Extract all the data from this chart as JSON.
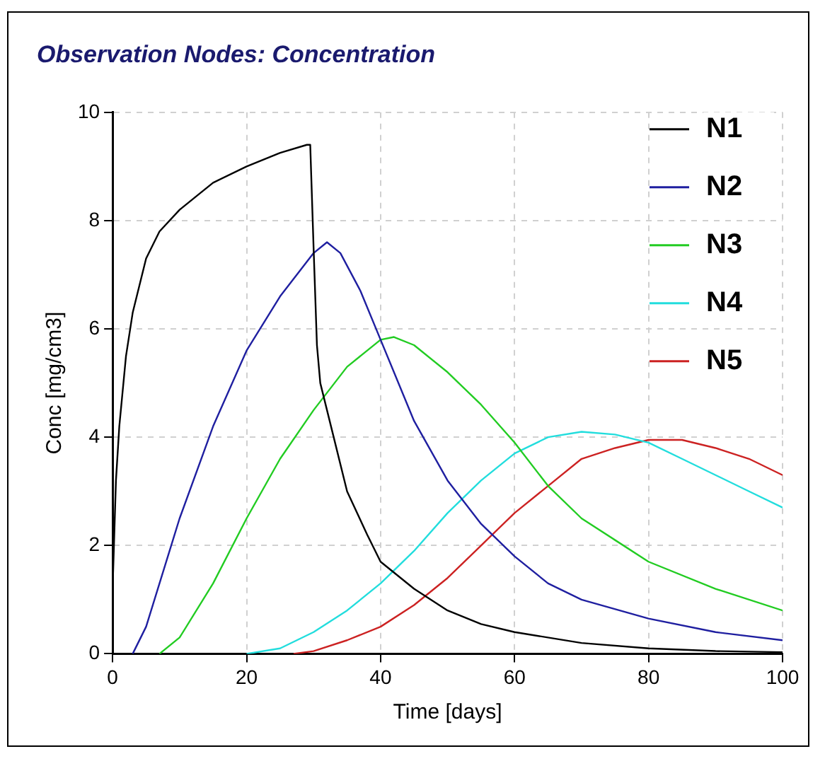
{
  "chart_data": {
    "type": "line",
    "title": "Observation Nodes: Concentration",
    "xlabel": "Time [days]",
    "ylabel": "Conc [mg/cm3]",
    "xlim": [
      0,
      100
    ],
    "xticks": [
      0,
      20,
      40,
      60,
      80,
      100
    ],
    "ylim": [
      0,
      10
    ],
    "yticks": [
      0,
      2,
      4,
      6,
      8,
      10
    ],
    "grid": true,
    "legend": "top right",
    "marker": "none",
    "line_style": "solid",
    "series": [
      {
        "name": "N1",
        "color": "#000000",
        "x": [
          0,
          0.5,
          1,
          2,
          3,
          5,
          7,
          10,
          13,
          15,
          20,
          25,
          29,
          29.5,
          30,
          30.5,
          31,
          33,
          35,
          38,
          40,
          45,
          50,
          55,
          60,
          70,
          80,
          90,
          100
        ],
        "values": [
          1.2,
          3.2,
          4.2,
          5.5,
          6.3,
          7.3,
          7.8,
          8.2,
          8.5,
          8.7,
          9.0,
          9.25,
          9.4,
          9.4,
          7.5,
          5.7,
          5.0,
          4.0,
          3.0,
          2.2,
          1.7,
          1.2,
          0.8,
          0.55,
          0.4,
          0.2,
          0.1,
          0.05,
          0.03
        ]
      },
      {
        "name": "N2",
        "color": "#1f1fa0",
        "x": [
          3,
          5,
          10,
          15,
          20,
          25,
          30,
          32,
          34,
          37,
          40,
          45,
          50,
          55,
          60,
          65,
          70,
          80,
          90,
          100
        ],
        "values": [
          0,
          0.5,
          2.5,
          4.2,
          5.6,
          6.6,
          7.4,
          7.6,
          7.4,
          6.7,
          5.8,
          4.3,
          3.2,
          2.4,
          1.8,
          1.3,
          1.0,
          0.65,
          0.4,
          0.25
        ]
      },
      {
        "name": "N3",
        "color": "#22cc22",
        "x": [
          7,
          10,
          15,
          20,
          25,
          30,
          35,
          40,
          42,
          45,
          50,
          55,
          60,
          65,
          70,
          75,
          80,
          90,
          100
        ],
        "values": [
          0,
          0.3,
          1.3,
          2.5,
          3.6,
          4.5,
          5.3,
          5.8,
          5.85,
          5.7,
          5.2,
          4.6,
          3.9,
          3.1,
          2.5,
          2.1,
          1.7,
          1.2,
          0.8
        ]
      },
      {
        "name": "N4",
        "color": "#22dddd",
        "x": [
          20,
          25,
          30,
          35,
          40,
          45,
          50,
          55,
          60,
          65,
          70,
          75,
          80,
          85,
          90,
          95,
          100
        ],
        "values": [
          0,
          0.1,
          0.4,
          0.8,
          1.3,
          1.9,
          2.6,
          3.2,
          3.7,
          4.0,
          4.1,
          4.05,
          3.9,
          3.6,
          3.3,
          3.0,
          2.7
        ]
      },
      {
        "name": "N5",
        "color": "#cc2222",
        "x": [
          27,
          30,
          35,
          40,
          45,
          50,
          55,
          60,
          65,
          70,
          75,
          80,
          85,
          90,
          95,
          100
        ],
        "values": [
          0,
          0.05,
          0.25,
          0.5,
          0.9,
          1.4,
          2.0,
          2.6,
          3.1,
          3.6,
          3.8,
          3.95,
          3.95,
          3.8,
          3.6,
          3.3
        ]
      }
    ]
  }
}
